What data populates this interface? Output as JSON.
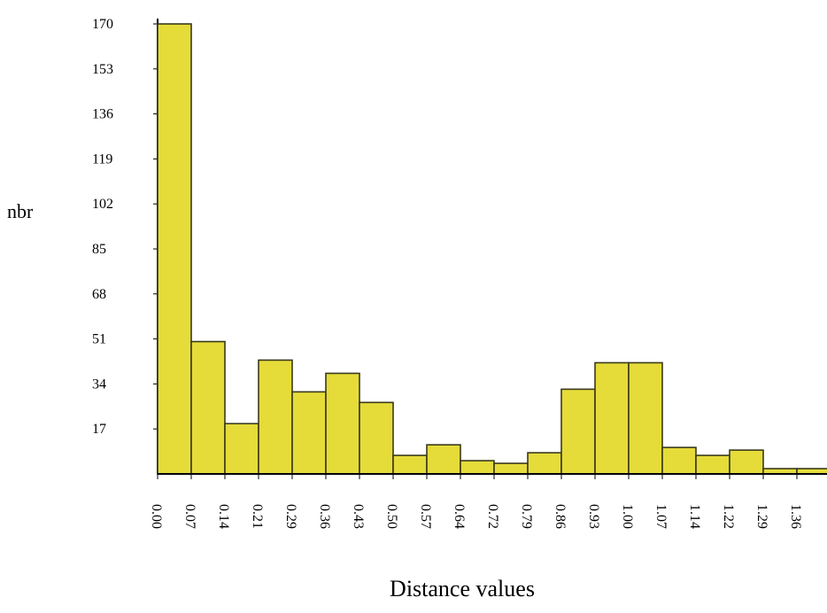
{
  "chart_data": {
    "type": "bar",
    "title": "",
    "xlabel": "Distance values",
    "ylabel": "nbr",
    "categories": [
      "0.00",
      "0.07",
      "0.14",
      "0.21",
      "0.29",
      "0.36",
      "0.43",
      "0.50",
      "0.57",
      "0.64",
      "0.72",
      "0.79",
      "0.86",
      "0.93",
      "1.00",
      "1.07",
      "1.14",
      "1.22",
      "1.29",
      "1.36"
    ],
    "values": [
      170,
      50,
      19,
      43,
      31,
      38,
      27,
      7,
      11,
      5,
      4,
      8,
      32,
      42,
      42,
      10,
      7,
      9,
      2,
      2
    ],
    "yticks": [
      17,
      34,
      51,
      68,
      85,
      102,
      119,
      136,
      153,
      170
    ],
    "ylim": [
      0,
      170
    ],
    "grid": false,
    "colors": {
      "bar_fill": "#E5DC3A",
      "bar_stroke": "#3A3A1A",
      "axis": "#000000"
    }
  }
}
